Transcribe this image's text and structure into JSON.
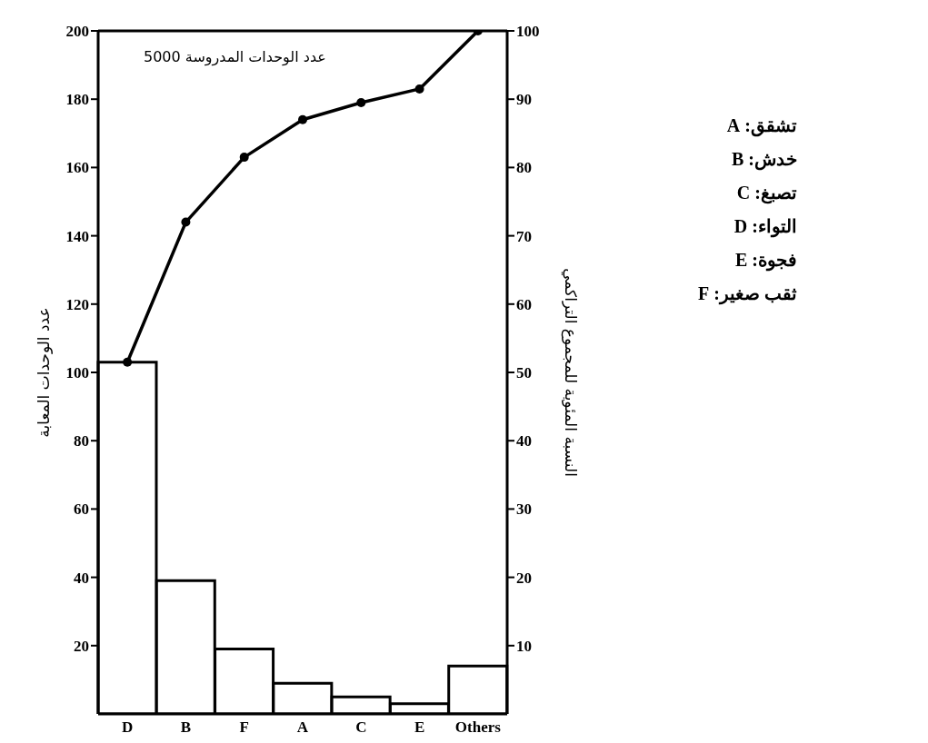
{
  "chart_data": {
    "type": "bar",
    "categories": [
      "D",
      "B",
      "F",
      "A",
      "C",
      "E",
      "Others"
    ],
    "series": [
      {
        "color": "#ffffff",
        "values": [
          103,
          39,
          19,
          9,
          5,
          3,
          14
        ]
      },
      {
        "type": "line",
        "axis": "y2",
        "color": "#000000",
        "values": [
          51.5,
          72,
          81.5,
          87,
          89.5,
          91.5,
          100
        ]
      }
    ],
    "ylim": [
      0,
      200
    ],
    "yticks": [
      20,
      40,
      60,
      80,
      100,
      120,
      140,
      160,
      180,
      200
    ],
    "y2lim": [
      0,
      100
    ],
    "y2ticks": [
      10,
      20,
      30,
      40,
      50,
      60,
      70,
      80,
      90,
      100
    ],
    "ylabel": "عدد الوحدات المعابة",
    "y2label": "النسبة المئوية للمجموع التراكمي",
    "annotations": [
      "عدد الوحدات المدروسة 5000",
      "تشقق: A",
      "خدش: B",
      "تصبغ: C",
      "التواء: D",
      "فجوة: E",
      "ثقب صغير: F"
    ],
    "marker": "circle",
    "line_style": "solid",
    "grid": false,
    "legend": false
  }
}
